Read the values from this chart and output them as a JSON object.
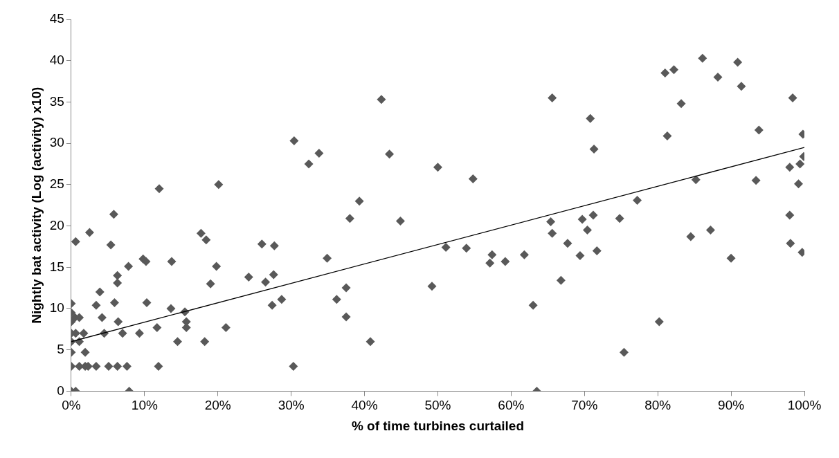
{
  "chart_data": {
    "type": "scatter",
    "xlabel": "% of time turbines curtailed",
    "ylabel": "Nightly bat activity (Log (activity) x10)",
    "xlim": [
      0,
      100
    ],
    "xticks": [
      {
        "value": 0,
        "label": "0%"
      },
      {
        "value": 10,
        "label": "10%"
      },
      {
        "value": 20,
        "label": "20%"
      },
      {
        "value": 30,
        "label": "30%"
      },
      {
        "value": 40,
        "label": "40%"
      },
      {
        "value": 50,
        "label": "50%"
      },
      {
        "value": 60,
        "label": "60%"
      },
      {
        "value": 70,
        "label": "70%"
      },
      {
        "value": 80,
        "label": "80%"
      },
      {
        "value": 90,
        "label": "90%"
      },
      {
        "value": 100,
        "label": "100%"
      }
    ],
    "ylim": [
      0,
      45
    ],
    "yticks": [
      0,
      5,
      10,
      15,
      20,
      25,
      30,
      35,
      40,
      45
    ],
    "grid": false,
    "legend": false,
    "marker": "diamond",
    "series": [
      {
        "color": "#595959",
        "x": [
          0,
          0.6,
          7.9,
          0,
          1.1,
          1.9,
          2.3,
          3.4,
          5.1,
          6.3,
          7.6,
          11.9,
          30.3,
          0,
          1.9,
          0,
          1.1,
          14.5,
          18.2,
          0,
          0.6,
          1.7,
          4.5,
          7.0,
          9.3,
          11.7,
          21.1,
          15.7,
          15.7,
          6.4,
          0,
          15.5,
          13.6,
          4.2,
          0.5,
          1.1,
          0,
          0,
          3.4,
          5.9,
          10.3,
          3.9,
          6.3,
          6.3,
          7.8,
          9.8,
          10.2,
          13.7,
          19.0,
          19.8,
          0.6,
          2.5,
          5.4,
          5.8,
          12.0,
          17.7,
          18.4,
          20.1,
          30.4,
          32.4,
          33.8,
          43.4,
          42.3,
          50.0,
          54.8,
          39.3,
          38.0,
          44.9,
          26.0,
          27.7,
          34.9,
          24.2,
          26.5,
          27.6,
          28.7,
          27.4,
          37.5,
          36.2,
          37.5,
          40.8,
          51.1,
          53.9,
          57.4,
          57.1,
          59.2,
          49.2,
          65.6,
          70.8,
          71.3,
          81.0,
          82.2,
          86.1,
          88.2,
          90.9,
          91.4,
          83.2,
          81.3,
          98.4,
          93.8,
          99.8,
          99.9,
          98.0,
          99.4,
          99.2,
          93.4,
          85.2,
          77.2,
          74.8,
          71.2,
          69.7,
          65.4,
          65.6,
          70.4,
          67.7,
          71.7,
          69.4,
          61.8,
          84.5,
          87.2,
          90.0,
          98.0,
          98.1,
          99.7,
          66.8,
          63.0,
          80.2,
          75.4,
          63.5
        ],
        "values": [
          0,
          0,
          0,
          3.0,
          3.0,
          3.0,
          3.0,
          3.0,
          3.0,
          3.0,
          3.0,
          3.0,
          3.0,
          4.7,
          4.7,
          6.0,
          6.0,
          6.0,
          6.0,
          7.0,
          7.0,
          7.0,
          7.0,
          7.0,
          7.0,
          7.7,
          7.7,
          7.7,
          8.4,
          8.4,
          8.4,
          9.6,
          10.0,
          8.9,
          8.9,
          8.9,
          9.5,
          10.6,
          10.4,
          10.7,
          10.7,
          12.0,
          13.1,
          14.0,
          15.1,
          16.0,
          15.7,
          15.7,
          13.0,
          15.1,
          18.1,
          19.2,
          17.7,
          21.4,
          24.5,
          19.1,
          18.3,
          25.0,
          30.3,
          27.5,
          28.8,
          28.7,
          35.3,
          27.1,
          25.7,
          23.0,
          20.9,
          20.6,
          17.8,
          17.6,
          16.1,
          13.8,
          13.2,
          14.1,
          11.1,
          10.4,
          12.5,
          11.1,
          9.0,
          6.0,
          17.4,
          17.3,
          16.5,
          15.5,
          15.7,
          12.7,
          35.5,
          33.0,
          29.3,
          38.5,
          38.9,
          40.3,
          38.0,
          39.8,
          36.9,
          34.8,
          30.9,
          35.5,
          31.6,
          31.1,
          28.4,
          27.1,
          27.5,
          25.1,
          25.5,
          25.6,
          23.1,
          20.9,
          21.3,
          20.8,
          20.5,
          19.1,
          19.5,
          17.9,
          17.0,
          16.4,
          16.5,
          18.7,
          19.5,
          16.1,
          21.3,
          17.9,
          16.8,
          13.4,
          10.4,
          8.4,
          4.7,
          0
        ]
      },
      {
        "type": "line",
        "marker": "none",
        "color": "#000000",
        "x": [
          0,
          100
        ],
        "values": [
          6.0,
          29.5
        ]
      }
    ]
  }
}
